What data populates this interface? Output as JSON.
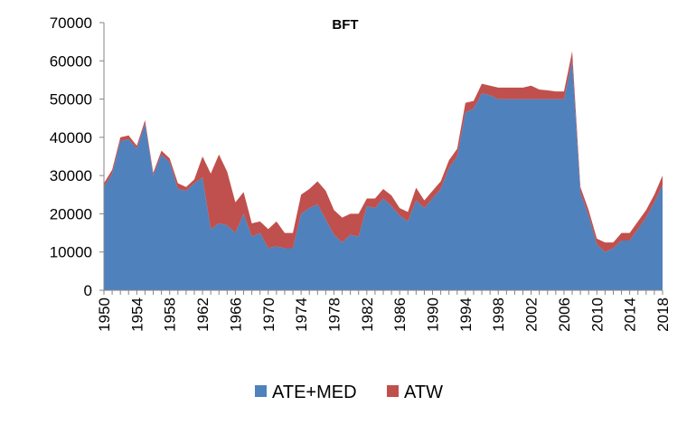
{
  "chart_data": {
    "type": "area",
    "stacked": true,
    "title": "BFT",
    "xlabel": "",
    "ylabel": "",
    "x": [
      1950,
      1951,
      1952,
      1953,
      1954,
      1955,
      1956,
      1957,
      1958,
      1959,
      1960,
      1961,
      1962,
      1963,
      1964,
      1965,
      1966,
      1967,
      1968,
      1969,
      1970,
      1971,
      1972,
      1973,
      1974,
      1975,
      1976,
      1977,
      1978,
      1979,
      1980,
      1981,
      1982,
      1983,
      1984,
      1985,
      1986,
      1987,
      1988,
      1989,
      1990,
      1991,
      1992,
      1993,
      1994,
      1995,
      1996,
      1997,
      1998,
      1999,
      2000,
      2001,
      2002,
      2003,
      2004,
      2005,
      2006,
      2007,
      2008,
      2009,
      2010,
      2011,
      2012,
      2013,
      2014,
      2015,
      2016,
      2017,
      2018
    ],
    "x_tick_labels": [
      "1950",
      "1954",
      "1958",
      "1962",
      "1966",
      "1970",
      "1974",
      "1978",
      "1982",
      "1986",
      "1990",
      "1994",
      "1998",
      "2002",
      "2006",
      "2010",
      "2014",
      "2018"
    ],
    "ylim": [
      0,
      70000
    ],
    "y_tick_labels": [
      "0",
      "10000",
      "20000",
      "30000",
      "40000",
      "50000",
      "60000",
      "70000"
    ],
    "series": [
      {
        "name": "ATE+MED",
        "color": "#4F81BD",
        "values": [
          27000,
          30500,
          39000,
          39500,
          37000,
          43500,
          30000,
          35500,
          33500,
          26500,
          26000,
          28000,
          29500,
          16000,
          17500,
          17000,
          15000,
          20000,
          14000,
          15000,
          11000,
          11500,
          11000,
          11000,
          20000,
          21500,
          22500,
          18500,
          14500,
          12500,
          14500,
          14000,
          22000,
          21500,
          24000,
          22000,
          19500,
          18000,
          23500,
          21500,
          24000,
          26500,
          32000,
          35000,
          46500,
          47500,
          51500,
          51000,
          50000,
          50000,
          50000,
          50000,
          50000,
          50000,
          50000,
          50000,
          50000,
          60000,
          25500,
          19500,
          12000,
          10000,
          11000,
          13000,
          13000,
          16000,
          19000,
          23000,
          27500
        ]
      },
      {
        "name": "ATW",
        "color": "#C0504D",
        "values": [
          1000,
          1000,
          1000,
          1000,
          800,
          1000,
          700,
          1000,
          1000,
          1500,
          1000,
          1000,
          5500,
          14500,
          18000,
          14000,
          8000,
          5700,
          3500,
          3000,
          5000,
          6500,
          4000,
          4000,
          5000,
          5000,
          6000,
          7500,
          6500,
          6500,
          5500,
          6000,
          2000,
          2500,
          2500,
          2800,
          2000,
          2500,
          3300,
          2000,
          2000,
          2000,
          2000,
          2000,
          2500,
          2000,
          2500,
          2500,
          3000,
          3000,
          3000,
          3000,
          3500,
          2500,
          2300,
          2000,
          2000,
          2500,
          1500,
          1500,
          1500,
          2500,
          1500,
          2000,
          2000,
          2000,
          2000,
          2000,
          2500
        ]
      }
    ],
    "legend_position": "bottom",
    "grid": false
  }
}
